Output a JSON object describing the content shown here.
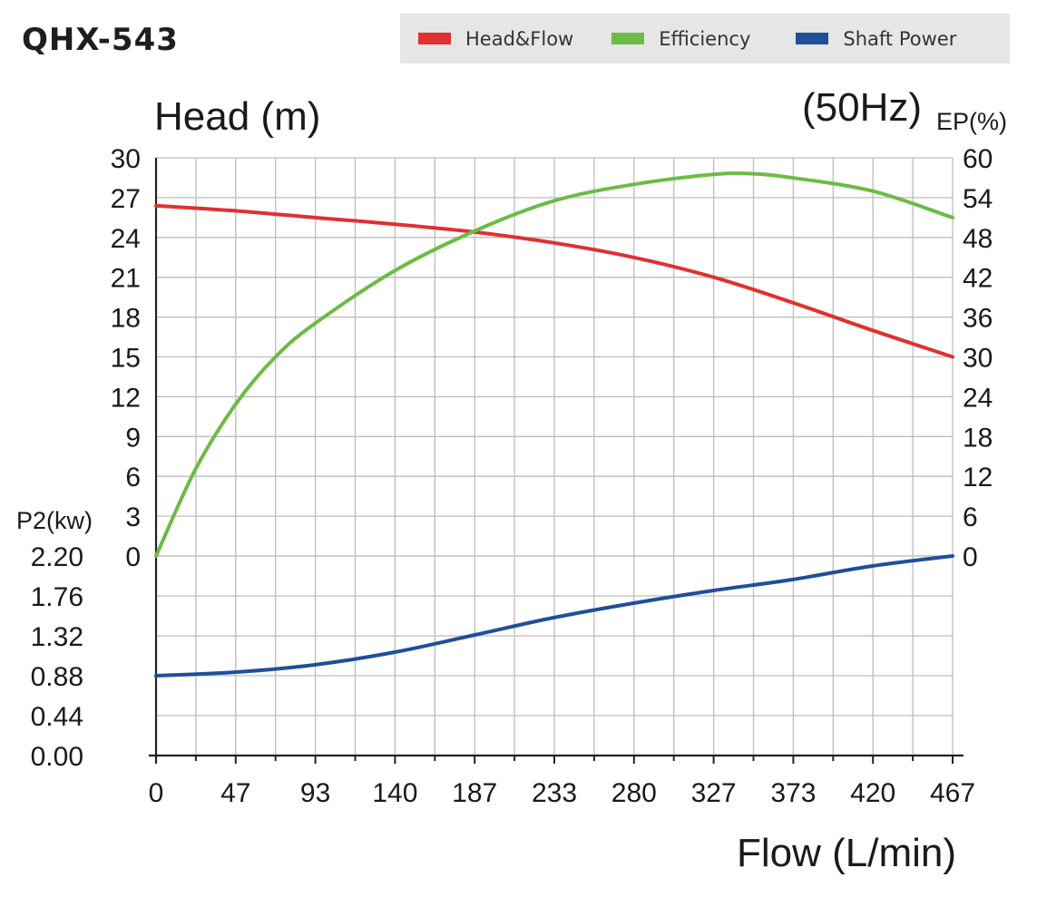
{
  "header": {
    "title": "QHX-543",
    "frequency": "(50Hz)"
  },
  "legend": [
    {
      "label": "Head&Flow",
      "color": "#e03030"
    },
    {
      "label": "Efficiency",
      "color": "#6cbb46"
    },
    {
      "label": "Shaft Power",
      "color": "#1f4f99"
    }
  ],
  "chart_data": {
    "type": "line",
    "xlabel": "Flow (L/min)",
    "x_ticks": [
      "0",
      "47",
      "93",
      "140",
      "187",
      "233",
      "280",
      "327",
      "373",
      "420",
      "467"
    ],
    "xlim": [
      0,
      467
    ],
    "grid": true,
    "axes": {
      "head": {
        "label": "Head (m)",
        "lim": [
          0,
          30
        ],
        "ticks": [
          "0",
          "3",
          "6",
          "9",
          "12",
          "15",
          "18",
          "21",
          "24",
          "27",
          "30"
        ]
      },
      "efficiency": {
        "label": "EP(%)",
        "lim": [
          0,
          60
        ],
        "ticks": [
          "0",
          "6",
          "12",
          "18",
          "24",
          "30",
          "36",
          "42",
          "48",
          "54",
          "60"
        ]
      },
      "power": {
        "label": "P2(kw)",
        "lim": [
          0,
          2.2
        ],
        "ticks": [
          "0.00",
          "0.44",
          "0.88",
          "1.32",
          "1.76",
          "2.20"
        ]
      }
    },
    "series": [
      {
        "name": "Head&Flow",
        "axis": "head",
        "color": "#e03030",
        "x": [
          0,
          47,
          93,
          140,
          187,
          233,
          280,
          327,
          373,
          420,
          467
        ],
        "values": [
          26.4,
          26.0,
          25.5,
          25.0,
          24.4,
          23.6,
          22.5,
          21.0,
          19.1,
          17.0,
          15.0
        ]
      },
      {
        "name": "Efficiency",
        "axis": "efficiency",
        "color": "#6cbb46",
        "x": [
          0,
          23,
          47,
          70,
          93,
          140,
          187,
          233,
          280,
          327,
          350,
          373,
          420,
          467
        ],
        "values": [
          0,
          13,
          23,
          30,
          35,
          43,
          49,
          53.5,
          56,
          57.5,
          57.6,
          57,
          55,
          51
        ]
      },
      {
        "name": "Shaft Power",
        "axis": "power",
        "color": "#1f4f99",
        "x": [
          0,
          47,
          93,
          140,
          187,
          233,
          280,
          327,
          373,
          420,
          467
        ],
        "values": [
          0.88,
          0.92,
          1.0,
          1.14,
          1.33,
          1.52,
          1.68,
          1.82,
          1.94,
          2.09,
          2.2
        ]
      }
    ]
  }
}
